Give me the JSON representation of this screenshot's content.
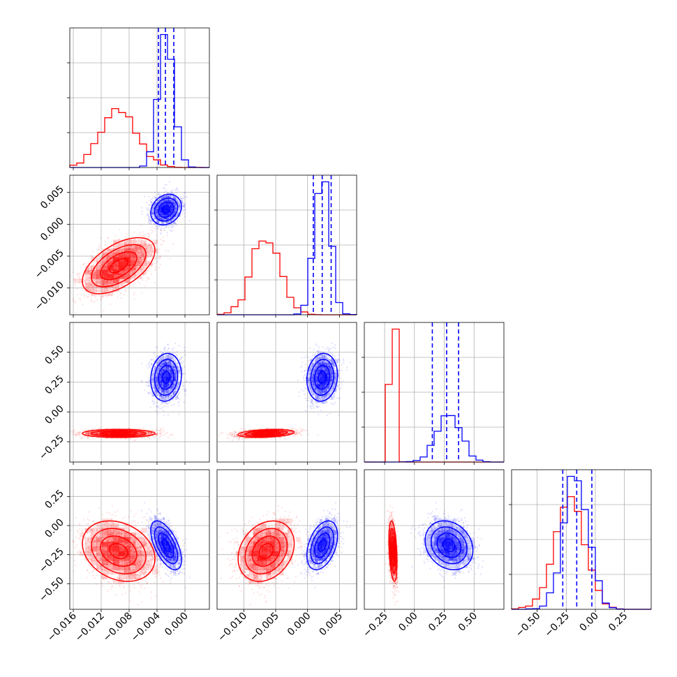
{
  "colors": {
    "red": "#ff0000",
    "blue": "#0000ff",
    "frame": "#000000",
    "grid": "#b0b0b0"
  },
  "chart_data": {
    "type": "corner",
    "grid": true,
    "dimensions": [
      {
        "ticks": [
          -0.016,
          -0.012,
          -0.008,
          -0.004,
          0.0
        ],
        "tick_labels": [
          "−0.016",
          "−0.012",
          "−0.008",
          "−0.004",
          "0.000"
        ],
        "range": [
          -0.0165,
          0.0035
        ]
      },
      {
        "ticks": [
          -0.01,
          -0.005,
          0.0,
          0.005
        ],
        "tick_labels": [
          "−0.010",
          "−0.005",
          "0.000",
          "0.005"
        ],
        "range": [
          -0.0142,
          0.0077
        ]
      },
      {
        "ticks": [
          -0.25,
          0.0,
          0.25,
          0.5
        ],
        "tick_labels": [
          "−0.25",
          "0.00",
          "0.25",
          "0.50"
        ],
        "range": [
          -0.42,
          0.75
        ]
      },
      {
        "ticks": [
          -0.5,
          -0.25,
          0.0,
          0.25
        ],
        "tick_labels": [
          "−0.50",
          "−0.25",
          "0.00",
          "0.25"
        ],
        "range": [
          -0.72,
          0.48
        ]
      }
    ],
    "series": [
      {
        "color": "red",
        "mean": [
          -0.0095,
          -0.0065,
          -0.18,
          -0.22
        ],
        "std": [
          0.0026,
          0.0022,
          0.017,
          0.13
        ],
        "corr": [
          [
            1.0,
            0.55,
            0.0,
            -0.25
          ],
          [
            0.55,
            1.0,
            0.3,
            0.25
          ],
          [
            0.0,
            0.3,
            1.0,
            -0.35
          ],
          [
            -0.25,
            0.25,
            -0.35,
            1.0
          ]
        ],
        "quantiles": []
      },
      {
        "color": "blue",
        "mean": [
          -0.0027,
          0.0023,
          0.29,
          -0.17
        ],
        "std": [
          0.0011,
          0.0012,
          0.1,
          0.105
        ],
        "corr": [
          [
            1.0,
            0.2,
            0.1,
            -0.6
          ],
          [
            0.2,
            1.0,
            0.1,
            0.4
          ],
          [
            0.1,
            0.1,
            1.0,
            -0.2
          ],
          [
            -0.6,
            0.4,
            -0.2,
            1.0
          ]
        ],
        "quantiles": [
          [
            -0.0038,
            -0.0028,
            -0.0016
          ],
          [
            0.0009,
            0.0023,
            0.0037
          ],
          [
            0.15,
            0.27,
            0.37
          ],
          [
            -0.28,
            -0.16,
            -0.03
          ]
        ]
      }
    ]
  }
}
